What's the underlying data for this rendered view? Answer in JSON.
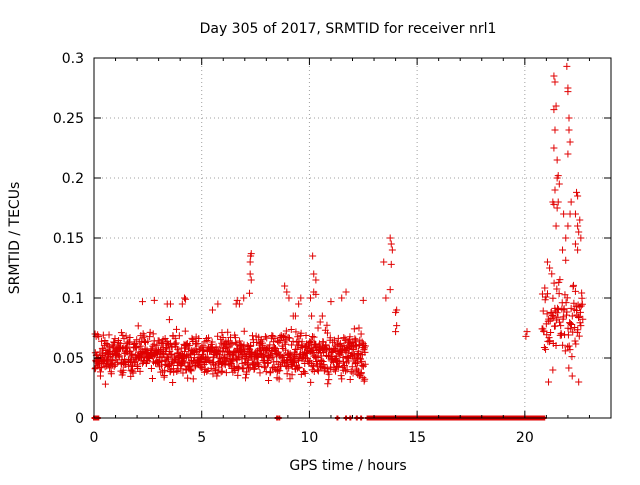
{
  "colors": {
    "series": "#e00000",
    "grid": "#a0a0a0",
    "frame": "#000000"
  },
  "chart_data": {
    "type": "scatter",
    "title": "Day 305 of 2017, SRMTID for receiver nrl1",
    "xlabel": "GPS time / hours",
    "ylabel": "SRMTID / TECUs",
    "xlim": [
      0,
      24
    ],
    "ylim": [
      0,
      0.3
    ],
    "grid": true,
    "x_ticks": [
      0,
      5,
      10,
      15,
      20
    ],
    "x_tick_labels": [
      "0",
      "5",
      "10",
      "15",
      "20"
    ],
    "y_ticks": [
      0,
      0.05,
      0.1,
      0.15,
      0.2,
      0.25,
      0.3
    ],
    "y_tick_labels": [
      "0",
      "0.05",
      "0.1",
      "0.15",
      "0.2",
      "0.25",
      "0.3"
    ],
    "marker": "plus",
    "series": [
      {
        "name": "SRMTID",
        "generated_segments": [
          {
            "x_start": 0.05,
            "x_end": 12.6,
            "step": 0.012,
            "center": 0.052,
            "spread": 0.026,
            "seed": 11
          },
          {
            "x_start": 20.8,
            "x_end": 22.7,
            "step": 0.018,
            "center": 0.085,
            "spread": 0.05,
            "seed": 23
          }
        ],
        "points": [
          [
            0.05,
            0.07
          ],
          [
            0.1,
            0.068
          ],
          [
            0.3,
            0.035
          ],
          [
            0.35,
            0.064
          ],
          [
            2.25,
            0.097
          ],
          [
            2.8,
            0.098
          ],
          [
            3.4,
            0.095
          ],
          [
            3.5,
            0.082
          ],
          [
            3.55,
            0.095
          ],
          [
            4.1,
            0.095
          ],
          [
            4.2,
            0.1
          ],
          [
            4.25,
            0.099
          ],
          [
            5.5,
            0.09
          ],
          [
            5.75,
            0.095
          ],
          [
            6.6,
            0.095
          ],
          [
            6.65,
            0.098
          ],
          [
            6.75,
            0.095
          ],
          [
            6.95,
            0.1
          ],
          [
            7.25,
            0.13
          ],
          [
            7.27,
            0.135
          ],
          [
            7.3,
            0.137
          ],
          [
            7.25,
            0.12
          ],
          [
            7.3,
            0.115
          ],
          [
            7.22,
            0.104
          ],
          [
            8.85,
            0.11
          ],
          [
            8.95,
            0.105
          ],
          [
            9.05,
            0.1
          ],
          [
            9.25,
            0.085
          ],
          [
            9.35,
            0.085
          ],
          [
            9.5,
            0.095
          ],
          [
            9.6,
            0.1
          ],
          [
            10.05,
            0.1
          ],
          [
            10.1,
            0.085
          ],
          [
            10.15,
            0.135
          ],
          [
            10.2,
            0.12
          ],
          [
            10.3,
            0.115
          ],
          [
            10.2,
            0.105
          ],
          [
            10.3,
            0.103
          ],
          [
            10.4,
            0.075
          ],
          [
            10.5,
            0.08
          ],
          [
            10.6,
            0.085
          ],
          [
            11.0,
            0.097
          ],
          [
            11.5,
            0.1
          ],
          [
            11.7,
            0.105
          ],
          [
            12.15,
            0.065
          ],
          [
            12.3,
            0.075
          ],
          [
            12.4,
            0.07
          ],
          [
            12.5,
            0.062
          ],
          [
            12.6,
            0.06
          ],
          [
            12.5,
            0.098
          ],
          [
            13.45,
            0.13
          ],
          [
            13.55,
            0.1
          ],
          [
            13.75,
            0.15
          ],
          [
            13.8,
            0.145
          ],
          [
            13.85,
            0.14
          ],
          [
            13.8,
            0.128
          ],
          [
            13.75,
            0.107
          ],
          [
            14.0,
            0.088
          ],
          [
            14.05,
            0.09
          ],
          [
            14.05,
            0.077
          ],
          [
            14.0,
            0.072
          ],
          [
            20.05,
            0.068
          ],
          [
            20.1,
            0.072
          ],
          [
            21.05,
            0.13
          ],
          [
            21.15,
            0.125
          ],
          [
            21.35,
            0.285
          ],
          [
            21.4,
            0.28
          ],
          [
            21.45,
            0.26
          ],
          [
            21.35,
            0.257
          ],
          [
            21.4,
            0.24
          ],
          [
            21.35,
            0.225
          ],
          [
            21.5,
            0.215
          ],
          [
            21.55,
            0.202
          ],
          [
            21.5,
            0.2
          ],
          [
            21.4,
            0.19
          ],
          [
            21.5,
            0.175
          ],
          [
            21.45,
            0.16
          ],
          [
            21.3,
            0.18
          ],
          [
            21.35,
            0.178
          ],
          [
            21.6,
            0.195
          ],
          [
            21.55,
            0.18
          ],
          [
            21.8,
            0.17
          ],
          [
            21.9,
            0.15
          ],
          [
            21.75,
            0.14
          ],
          [
            21.95,
            0.293
          ],
          [
            22.0,
            0.275
          ],
          [
            22.0,
            0.272
          ],
          [
            22.05,
            0.25
          ],
          [
            22.05,
            0.24
          ],
          [
            22.1,
            0.23
          ],
          [
            22.0,
            0.22
          ],
          [
            22.1,
            0.17
          ],
          [
            22.15,
            0.18
          ],
          [
            22.0,
            0.16
          ],
          [
            22.4,
            0.188
          ],
          [
            22.45,
            0.185
          ],
          [
            22.35,
            0.17
          ],
          [
            22.45,
            0.16
          ],
          [
            22.55,
            0.165
          ],
          [
            22.5,
            0.155
          ],
          [
            22.35,
            0.145
          ],
          [
            22.6,
            0.15
          ],
          [
            22.45,
            0.14
          ],
          [
            21.1,
            0.03
          ],
          [
            21.3,
            0.04
          ],
          [
            22.2,
            0.035
          ],
          [
            22.5,
            0.03
          ]
        ]
      }
    ],
    "zero_markers": {
      "description": "values plotted at 0 (no data)",
      "ranges": [
        [
          0.0,
          0.2
        ]
      ],
      "points": [
        8.5,
        8.6,
        11.3,
        11.7,
        11.9,
        12.2,
        12.4
      ],
      "dense_range": [
        12.7,
        20.9
      ]
    }
  }
}
